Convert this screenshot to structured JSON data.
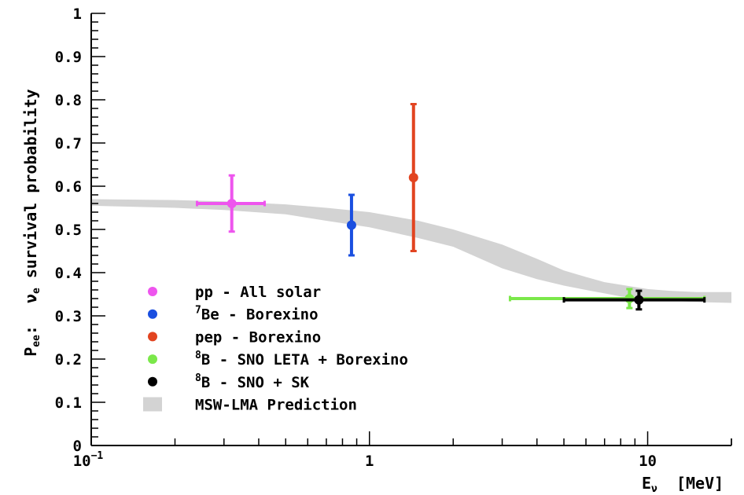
{
  "chart_data": {
    "type": "scatter",
    "xscale": "log",
    "xlim": [
      0.1,
      20
    ],
    "ylim": [
      0,
      1
    ],
    "xlabel": {
      "main": "E",
      "sub": "ν",
      "rest": "  [MeV]"
    },
    "ylabel": {
      "prefix_main": "P",
      "prefix_sub": "ee",
      "prefix_colon": ":",
      "nu": "ν",
      "nu_sub": "e",
      "text": " survival probability"
    },
    "x_ticks": [
      {
        "value": 0.1,
        "label_base": "10",
        "label_exp": "−1"
      },
      {
        "value": 1,
        "label": "1"
      },
      {
        "value": 10,
        "label": "10"
      }
    ],
    "y_ticks": [
      {
        "value": 0,
        "label": "0"
      },
      {
        "value": 0.1,
        "label": "0.1"
      },
      {
        "value": 0.2,
        "label": "0.2"
      },
      {
        "value": 0.3,
        "label": "0.3"
      },
      {
        "value": 0.4,
        "label": "0.4"
      },
      {
        "value": 0.5,
        "label": "0.5"
      },
      {
        "value": 0.6,
        "label": "0.6"
      },
      {
        "value": 0.7,
        "label": "0.7"
      },
      {
        "value": 0.8,
        "label": "0.8"
      },
      {
        "value": 0.9,
        "label": "0.9"
      },
      {
        "value": 1,
        "label": "1"
      }
    ],
    "grid": false,
    "legend_placement": "lower-left",
    "series": [
      {
        "name": "pp - All solar",
        "color": "#ee55ee",
        "x": 0.32,
        "y": 0.56,
        "xerr": [
          0.24,
          0.42
        ],
        "yerr": [
          0.495,
          0.625
        ]
      },
      {
        "name": "7Be - Borexino",
        "sup": "7",
        "rest": "Be - Borexino",
        "color": "#1a4fe0",
        "x": 0.862,
        "y": 0.51,
        "yerr": [
          0.44,
          0.58
        ]
      },
      {
        "name": "pep - Borexino",
        "color": "#e24420",
        "x": 1.44,
        "y": 0.62,
        "yerr": [
          0.45,
          0.79
        ]
      },
      {
        "name": "8B - SNO LETA + Borexino",
        "sup": "8",
        "rest": "B - SNO LETA + Borexino",
        "color": "#7be84a",
        "x": 8.6,
        "y": 0.34,
        "xerr": [
          3.2,
          16.0
        ],
        "yerr": [
          0.318,
          0.362
        ]
      },
      {
        "name": "8B - SNO + SK",
        "sup": "8",
        "rest": "B - SNO + SK",
        "color": "#000000",
        "x": 9.3,
        "y": 0.337,
        "xerr": [
          5.0,
          16.0
        ],
        "yerr": [
          0.315,
          0.358
        ]
      }
    ],
    "band": {
      "name": "MSW-LMA Prediction",
      "color": "#d3d3d3",
      "x": [
        0.1,
        0.2,
        0.3,
        0.5,
        0.7,
        1.0,
        1.5,
        2.0,
        3.0,
        4.0,
        5.0,
        6.0,
        7.0,
        8.0,
        10.0,
        12.0,
        15.0,
        20.0
      ],
      "y_low": [
        0.555,
        0.55,
        0.545,
        0.535,
        0.52,
        0.505,
        0.48,
        0.46,
        0.41,
        0.385,
        0.37,
        0.36,
        0.352,
        0.345,
        0.338,
        0.335,
        0.332,
        0.33
      ],
      "y_high": [
        0.57,
        0.568,
        0.565,
        0.558,
        0.55,
        0.54,
        0.52,
        0.5,
        0.465,
        0.432,
        0.405,
        0.39,
        0.378,
        0.372,
        0.362,
        0.358,
        0.355,
        0.355
      ]
    }
  }
}
